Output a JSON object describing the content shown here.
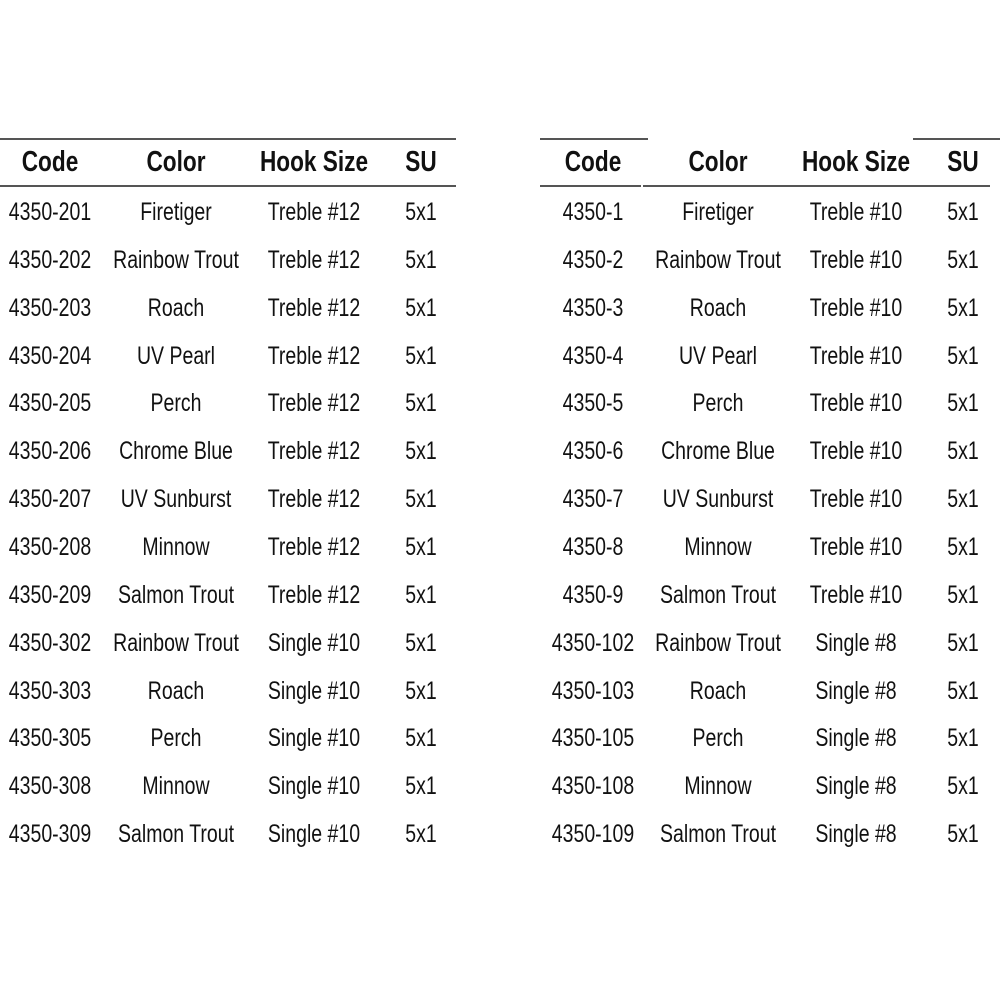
{
  "tables": [
    {
      "headers": [
        "Code",
        "Color",
        "Hook Size",
        "SU"
      ],
      "rows": [
        [
          "4350-201",
          "Firetiger",
          "Treble #12",
          "5x1"
        ],
        [
          "4350-202",
          "Rainbow Trout",
          "Treble #12",
          "5x1"
        ],
        [
          "4350-203",
          "Roach",
          "Treble #12",
          "5x1"
        ],
        [
          "4350-204",
          "UV Pearl",
          "Treble #12",
          "5x1"
        ],
        [
          "4350-205",
          "Perch",
          "Treble #12",
          "5x1"
        ],
        [
          "4350-206",
          "Chrome Blue",
          "Treble #12",
          "5x1"
        ],
        [
          "4350-207",
          "UV Sunburst",
          "Treble #12",
          "5x1"
        ],
        [
          "4350-208",
          "Minnow",
          "Treble #12",
          "5x1"
        ],
        [
          "4350-209",
          "Salmon Trout",
          "Treble #12",
          "5x1"
        ],
        [
          "4350-302",
          "Rainbow Trout",
          "Single #10",
          "5x1"
        ],
        [
          "4350-303",
          "Roach",
          "Single #10",
          "5x1"
        ],
        [
          "4350-305",
          "Perch",
          "Single #10",
          "5x1"
        ],
        [
          "4350-308",
          "Minnow",
          "Single #10",
          "5x1"
        ],
        [
          "4350-309",
          "Salmon Trout",
          "Single #10",
          "5x1"
        ]
      ]
    },
    {
      "headers": [
        "Code",
        "Color",
        "Hook Size",
        "SU"
      ],
      "rows": [
        [
          "4350-1",
          "Firetiger",
          "Treble #10",
          "5x1"
        ],
        [
          "4350-2",
          "Rainbow Trout",
          "Treble #10",
          "5x1"
        ],
        [
          "4350-3",
          "Roach",
          "Treble #10",
          "5x1"
        ],
        [
          "4350-4",
          "UV Pearl",
          "Treble #10",
          "5x1"
        ],
        [
          "4350-5",
          "Perch",
          "Treble #10",
          "5x1"
        ],
        [
          "4350-6",
          "Chrome Blue",
          "Treble #10",
          "5x1"
        ],
        [
          "4350-7",
          "UV Sunburst",
          "Treble #10",
          "5x1"
        ],
        [
          "4350-8",
          "Minnow",
          "Treble #10",
          "5x1"
        ],
        [
          "4350-9",
          "Salmon Trout",
          "Treble #10",
          "5x1"
        ],
        [
          "4350-102",
          "Rainbow Trout",
          "Single #8",
          "5x1"
        ],
        [
          "4350-103",
          "Roach",
          "Single #8",
          "5x1"
        ],
        [
          "4350-105",
          "Perch",
          "Single #8",
          "5x1"
        ],
        [
          "4350-108",
          "Minnow",
          "Single #8",
          "5x1"
        ],
        [
          "4350-109",
          "Salmon Trout",
          "Single #8",
          "5x1"
        ]
      ]
    }
  ]
}
